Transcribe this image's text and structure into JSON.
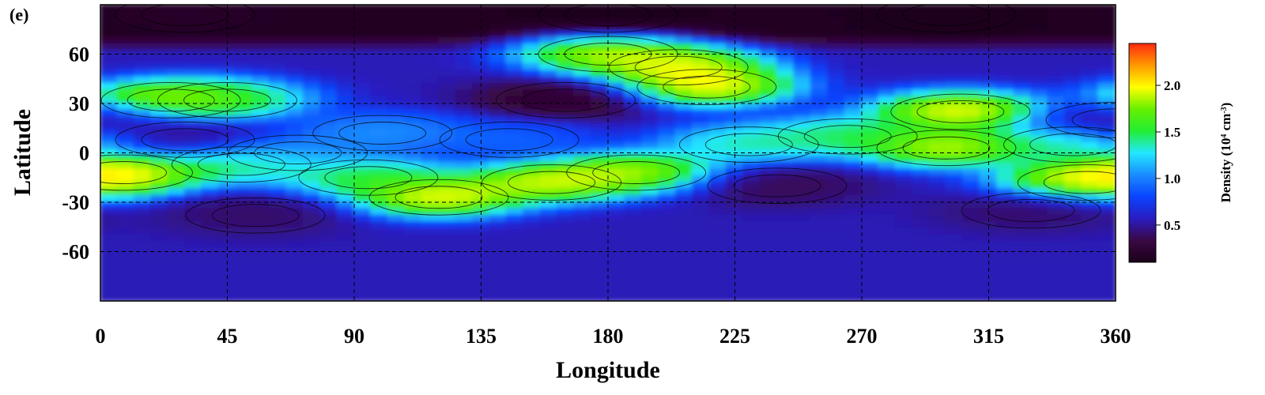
{
  "chart_data": {
    "type": "heatmap",
    "panel_label": "(e)",
    "xlabel": "Longitude",
    "ylabel": "Latitude",
    "xlim": [
      0,
      360
    ],
    "ylim": [
      -90,
      90
    ],
    "x_ticks": [
      0,
      45,
      90,
      135,
      180,
      225,
      270,
      315,
      360
    ],
    "y_ticks": [
      60,
      30,
      0,
      -30,
      -60
    ],
    "grid": true,
    "grid_lines_x": [
      45,
      90,
      135,
      180,
      225,
      270,
      315
    ],
    "grid_lines_y": [
      60,
      30,
      0,
      -30,
      -60
    ],
    "colorbar": {
      "label_main": "Density (10",
      "label_exp1": "4",
      "label_mid": " cm",
      "label_exp2": "-3",
      "label_end": ")",
      "ticks": [
        0.5,
        1.0,
        1.5,
        2.0
      ],
      "tick_labels": [
        "0.5",
        "1.0",
        "1.5",
        "2.0"
      ],
      "range": [
        0.1,
        2.45
      ],
      "colors": [
        "#1a0018",
        "#3a0845",
        "#2a1cc0",
        "#0a44ff",
        "#1a8cff",
        "#22e8ff",
        "#22ee33",
        "#66f000",
        "#ffff00",
        "#ff9a00",
        "#ff2a10"
      ]
    },
    "features": [
      {
        "lon": 215,
        "lat": 40,
        "value": 2.4
      },
      {
        "lon": 205,
        "lat": 52,
        "value": 2.3
      },
      {
        "lon": 180,
        "lat": 60,
        "value": 2.2
      },
      {
        "lon": 305,
        "lat": 25,
        "value": 2.4
      },
      {
        "lon": 300,
        "lat": 3,
        "value": 2.3
      },
      {
        "lon": 265,
        "lat": 10,
        "value": 1.7
      },
      {
        "lon": 230,
        "lat": 5,
        "value": 1.6
      },
      {
        "lon": 345,
        "lat": 5,
        "value": 1.6
      },
      {
        "lon": 25,
        "lat": 32,
        "value": 2.3
      },
      {
        "lon": 45,
        "lat": 32,
        "value": 1.7
      },
      {
        "lon": 8,
        "lat": -12,
        "value": 2.4
      },
      {
        "lon": 50,
        "lat": -7,
        "value": 1.7
      },
      {
        "lon": 95,
        "lat": -15,
        "value": 1.8
      },
      {
        "lon": 120,
        "lat": -27,
        "value": 2.4
      },
      {
        "lon": 160,
        "lat": -18,
        "value": 2.3
      },
      {
        "lon": 190,
        "lat": -12,
        "value": 2.2
      },
      {
        "lon": 350,
        "lat": -18,
        "value": 2.3
      },
      {
        "lon": 100,
        "lat": 12,
        "value": 1.2
      },
      {
        "lon": 70,
        "lat": 0,
        "value": 1.1
      },
      {
        "lon": 145,
        "lat": 8,
        "value": 1.0
      },
      {
        "lon": 165,
        "lat": 32,
        "value": 0.12
      },
      {
        "lon": 240,
        "lat": -20,
        "value": 0.3
      },
      {
        "lon": 330,
        "lat": -35,
        "value": 0.35
      },
      {
        "lon": 55,
        "lat": -38,
        "value": 0.35
      },
      {
        "lon": 30,
        "lat": 8,
        "value": 0.4
      },
      {
        "lon": 360,
        "lat": 20,
        "value": 0.4
      },
      {
        "lon": 180,
        "lat": 84,
        "value": 0.1
      },
      {
        "lon": 30,
        "lat": 84,
        "value": 0.2
      },
      {
        "lon": 300,
        "lat": 84,
        "value": 0.1
      }
    ]
  }
}
